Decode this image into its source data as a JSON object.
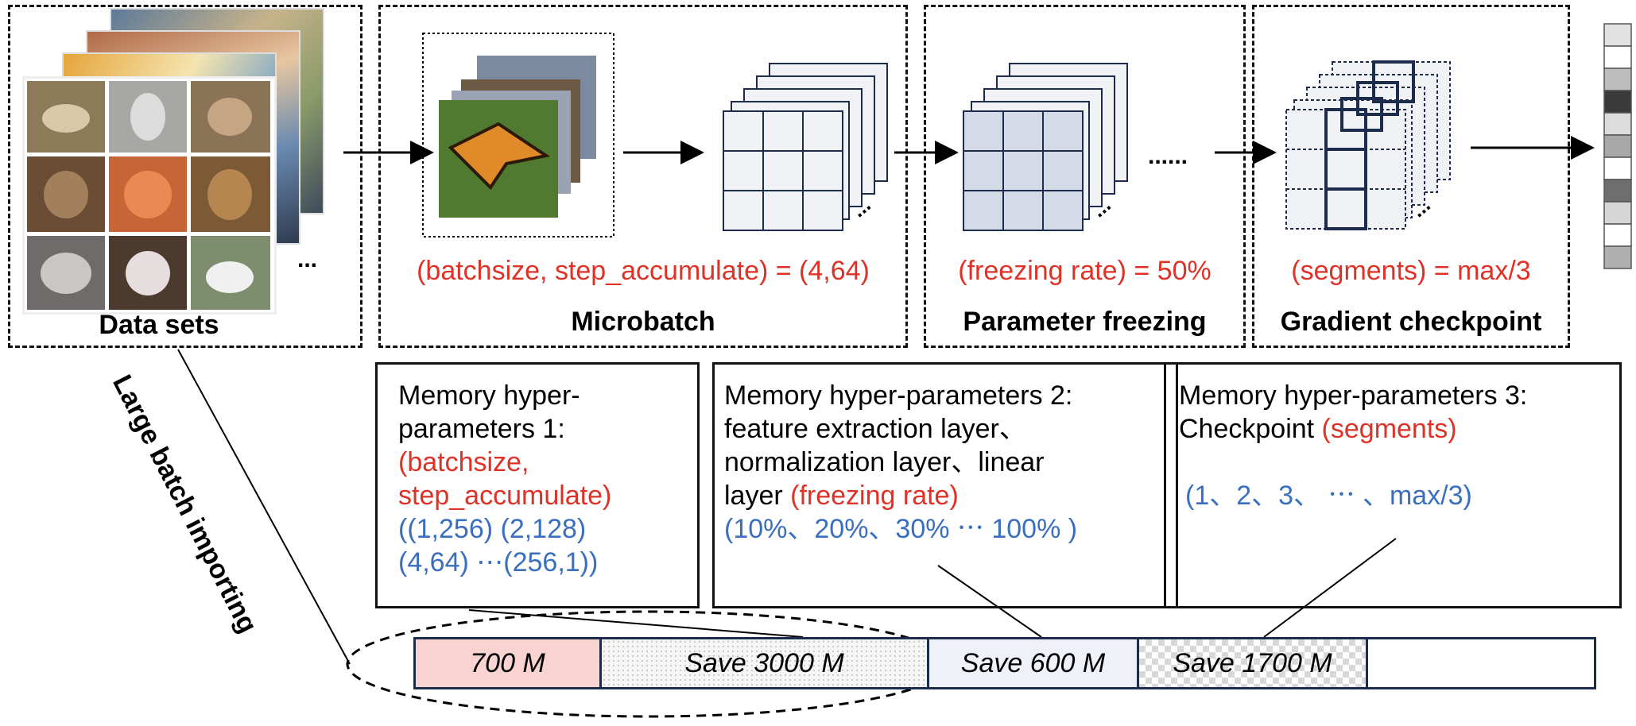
{
  "stages": {
    "datasets": {
      "title": "Data sets"
    },
    "microbatch": {
      "title": "Microbatch",
      "param": "(batchsize, step_accumulate) = (4,64)"
    },
    "freezing": {
      "title": "Parameter freezing",
      "param": "(freezing rate) = 50%"
    },
    "checkpoint": {
      "title": "Gradient checkpoint",
      "param": "(segments) = max/3"
    }
  },
  "side_label": "Large batch importing",
  "ellipsis": "......",
  "dots": "...",
  "memory": {
    "box1": {
      "line1": "Memory hyper-",
      "line2": "parameters 1:",
      "red1": "(batchsize,",
      "red2": "step_accumulate)",
      "blue1": "((1,256)  (2,128)",
      "blue2": "(4,64) ⋯(256,1))"
    },
    "box2": {
      "line1": "Memory hyper-parameters 2:",
      "line2": "feature extraction layer、",
      "line3": "normalization layer、linear",
      "line4a": "layer ",
      "line4b": "(freezing rate)",
      "blue": " (10%、20%、30%  ⋯ 100% )"
    },
    "box3": {
      "line1": "Memory hyper-parameters 3:",
      "line2a": "Checkpoint ",
      "line2b": "(segments)",
      "blue": "(1、2、3、 ⋯ 、max/3)"
    }
  },
  "memory_bar": {
    "segments": [
      {
        "label": "700 M"
      },
      {
        "label": "Save 3000 M"
      },
      {
        "label": "Save 600 M"
      },
      {
        "label": "Save 1700 M"
      },
      {
        "label": ""
      }
    ]
  },
  "colors": {
    "red": "#e03127",
    "blue": "#3a6fc0",
    "segment_700": "#f9d3d0",
    "segment_600": "#eef1f8",
    "frozen": "#d4dae6",
    "grid_stroke": "#1d2c4c"
  }
}
